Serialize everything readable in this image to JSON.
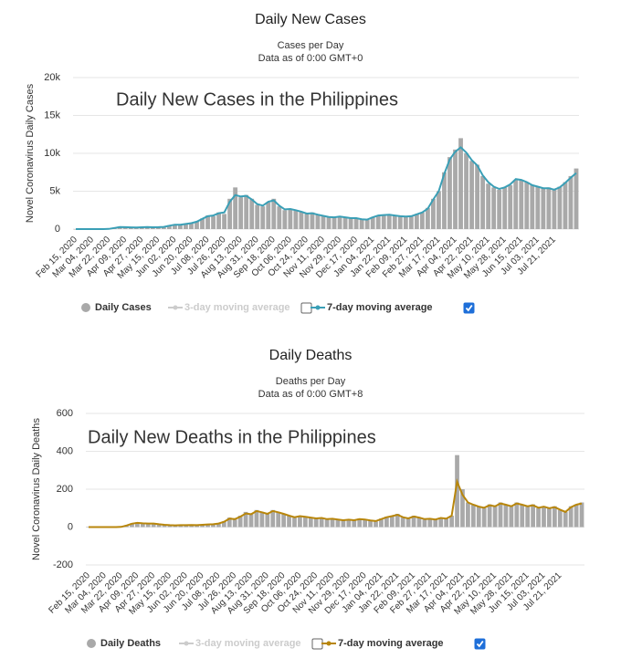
{
  "chart_data": [
    {
      "type": "bar",
      "title": "Daily New Cases",
      "subtitle": [
        "Cases per Day",
        "Data as of 0:00 GMT+0"
      ],
      "annotation": "Daily New Cases in the Philippines",
      "y_label": "Novel Coronavirus Daily Cases",
      "categories": [
        "Feb 15, 2020",
        null,
        null,
        "Mar 04, 2020",
        null,
        null,
        "Mar 22, 2020",
        null,
        null,
        "Apr 09, 2020",
        null,
        null,
        "Apr 27, 2020",
        null,
        null,
        "May 15, 2020",
        null,
        null,
        "Jun 02, 2020",
        null,
        null,
        "Jun 20, 2020",
        null,
        null,
        "Jul 08, 2020",
        null,
        null,
        "Jul 26, 2020",
        null,
        null,
        "Aug 13, 2020",
        null,
        null,
        "Aug 31, 2020",
        null,
        null,
        "Sep 18, 2020",
        null,
        null,
        "Oct 06, 2020",
        null,
        null,
        "Oct 24, 2020",
        null,
        null,
        "Nov 11, 2020",
        null,
        null,
        "Nov 29, 2020",
        null,
        null,
        "Dec 17, 2020",
        null,
        null,
        "Jan 04, 2021",
        null,
        null,
        "Jan 22, 2021",
        null,
        null,
        "Feb 09, 2021",
        null,
        null,
        "Feb 27, 2021",
        null,
        null,
        "Mar 17, 2021",
        null,
        null,
        "Apr 04, 2021",
        null,
        null,
        "Apr 22, 2021",
        null,
        null,
        "May 10, 2021",
        null,
        null,
        "May 28, 2021",
        null,
        null,
        "Jun 15, 2021",
        null,
        null,
        "Jul 03, 2021",
        null,
        null,
        "Jul 21, 2021",
        null,
        null,
        null,
        null
      ],
      "series": [
        {
          "name": "Daily Cases",
          "type": "bar",
          "color": "#a9a9a9",
          "values": [
            0,
            0,
            0,
            0,
            0,
            0,
            30,
            200,
            300,
            250,
            220,
            200,
            250,
            280,
            220,
            250,
            300,
            500,
            600,
            550,
            700,
            800,
            1000,
            1400,
            1800,
            1700,
            2200,
            2000,
            4000,
            5500,
            4200,
            4500,
            4000,
            3200,
            3000,
            3500,
            4000,
            3000,
            2500,
            2700,
            2500,
            2300,
            2000,
            2200,
            1900,
            1700,
            1600,
            1500,
            1700,
            1600,
            1400,
            1500,
            1300,
            1200,
            1600,
            1800,
            1900,
            1900,
            1800,
            1700,
            1600,
            1700,
            2000,
            2200,
            2800,
            4000,
            5000,
            7500,
            9500,
            10500,
            12000,
            10000,
            9000,
            8500,
            7000,
            6000,
            5500,
            5200,
            5500,
            5800,
            6500,
            6500,
            6200,
            5800,
            5600,
            5400,
            5500,
            5200,
            5600,
            6200,
            7000,
            8000
          ]
        },
        {
          "name": "3-day moving average",
          "type": "line",
          "color": "#cccccc",
          "hidden": true
        },
        {
          "name": "7-day moving average",
          "type": "line",
          "color": "#3a9fb6",
          "checked": true,
          "values": [
            0,
            0,
            0,
            0,
            0,
            0,
            20,
            150,
            260,
            250,
            230,
            210,
            240,
            260,
            240,
            250,
            290,
            450,
            580,
            570,
            680,
            780,
            980,
            1350,
            1700,
            1800,
            2100,
            2200,
            3600,
            4500,
            4300,
            4400,
            3900,
            3300,
            3100,
            3600,
            3800,
            3100,
            2600,
            2650,
            2500,
            2300,
            2050,
            2100,
            1900,
            1750,
            1600,
            1550,
            1650,
            1550,
            1450,
            1450,
            1300,
            1250,
            1550,
            1800,
            1850,
            1900,
            1800,
            1700,
            1650,
            1700,
            1950,
            2200,
            2700,
            3900,
            5000,
            7300,
            9200,
            10200,
            10800,
            10100,
            9100,
            8400,
            7100,
            6200,
            5600,
            5300,
            5500,
            5900,
            6600,
            6500,
            6200,
            5800,
            5600,
            5400,
            5400,
            5200,
            5500,
            6100,
            6800,
            7400
          ]
        }
      ],
      "ylim": [
        0,
        20000
      ],
      "yticks": [
        0,
        {
          "value": 5000,
          "label": "5k"
        },
        {
          "value": 10000,
          "label": "10k"
        },
        {
          "value": 15000,
          "label": "15k"
        },
        {
          "value": 20000,
          "label": "20k"
        }
      ],
      "grid": true
    },
    {
      "type": "bar",
      "title": "Daily Deaths",
      "subtitle": [
        "Deaths per Day",
        "Data as of 0:00 GMT+8"
      ],
      "annotation": "Daily New Deaths in the Philippines",
      "y_label": "Novel Coronavirus Daily Deaths",
      "categories": [
        "Feb 15, 2020",
        null,
        null,
        "Mar 04, 2020",
        null,
        null,
        "Mar 22, 2020",
        null,
        null,
        "Apr 09, 2020",
        null,
        null,
        "Apr 27, 2020",
        null,
        null,
        "May 15, 2020",
        null,
        null,
        "Jun 02, 2020",
        null,
        null,
        "Jun 20, 2020",
        null,
        null,
        "Jul 08, 2020",
        null,
        null,
        "Jul 26, 2020",
        null,
        null,
        "Aug 13, 2020",
        null,
        null,
        "Aug 31, 2020",
        null,
        null,
        "Sep 18, 2020",
        null,
        null,
        "Oct 06, 2020",
        null,
        null,
        "Oct 24, 2020",
        null,
        null,
        "Nov 11, 2020",
        null,
        null,
        "Nov 29, 2020",
        null,
        null,
        "Dec 17, 2020",
        null,
        null,
        "Jan 04, 2021",
        null,
        null,
        "Jan 22, 2021",
        null,
        null,
        "Feb 09, 2021",
        null,
        null,
        "Feb 27, 2021",
        null,
        null,
        "Mar 17, 2021",
        null,
        null,
        "Apr 04, 2021",
        null,
        null,
        "Apr 22, 2021",
        null,
        null,
        "May 10, 2021",
        null,
        null,
        "May 28, 2021",
        null,
        null,
        "Jun 15, 2021",
        null,
        null,
        "Jul 03, 2021",
        null,
        null,
        "Jul 21, 2021",
        null,
        null,
        null,
        null
      ],
      "series": [
        {
          "name": "Daily Deaths",
          "type": "bar",
          "color": "#a9a9a9",
          "values": [
            0,
            0,
            0,
            0,
            0,
            0,
            2,
            10,
            20,
            25,
            20,
            20,
            20,
            15,
            12,
            10,
            8,
            10,
            10,
            12,
            10,
            12,
            15,
            15,
            20,
            30,
            50,
            40,
            60,
            80,
            70,
            90,
            80,
            70,
            90,
            80,
            70,
            60,
            50,
            60,
            55,
            50,
            45,
            50,
            40,
            45,
            40,
            35,
            40,
            35,
            45,
            40,
            35,
            30,
            45,
            55,
            60,
            70,
            50,
            45,
            60,
            50,
            40,
            45,
            40,
            50,
            45,
            60,
            380,
            200,
            130,
            120,
            110,
            100,
            120,
            110,
            130,
            120,
            110,
            130,
            120,
            110,
            120,
            100,
            110,
            100,
            110,
            90,
            80,
            110,
            120,
            130
          ]
        },
        {
          "name": "3-day moving average",
          "type": "line",
          "color": "#cccccc",
          "hidden": true
        },
        {
          "name": "7-day moving average",
          "type": "line",
          "color": "#b8860b",
          "checked": true,
          "values": [
            0,
            0,
            0,
            0,
            0,
            0,
            1,
            8,
            18,
            22,
            20,
            19,
            19,
            15,
            12,
            10,
            9,
            10,
            10,
            11,
            10,
            12,
            14,
            15,
            19,
            28,
            45,
            42,
            55,
            72,
            68,
            85,
            78,
            70,
            85,
            78,
            70,
            60,
            52,
            58,
            54,
            50,
            46,
            48,
            42,
            44,
            40,
            36,
            39,
            36,
            42,
            40,
            35,
            32,
            42,
            52,
            58,
            65,
            52,
            46,
            56,
            50,
            42,
            44,
            40,
            48,
            45,
            60,
            240,
            170,
            130,
            118,
            108,
            102,
            115,
            110,
            125,
            118,
            110,
            125,
            118,
            110,
            115,
            102,
            108,
            100,
            105,
            92,
            80,
            105,
            118,
            125
          ]
        }
      ],
      "ylim": [
        -200,
        600
      ],
      "yticks": [
        -200,
        0,
        200,
        400,
        600
      ],
      "grid": true
    }
  ]
}
